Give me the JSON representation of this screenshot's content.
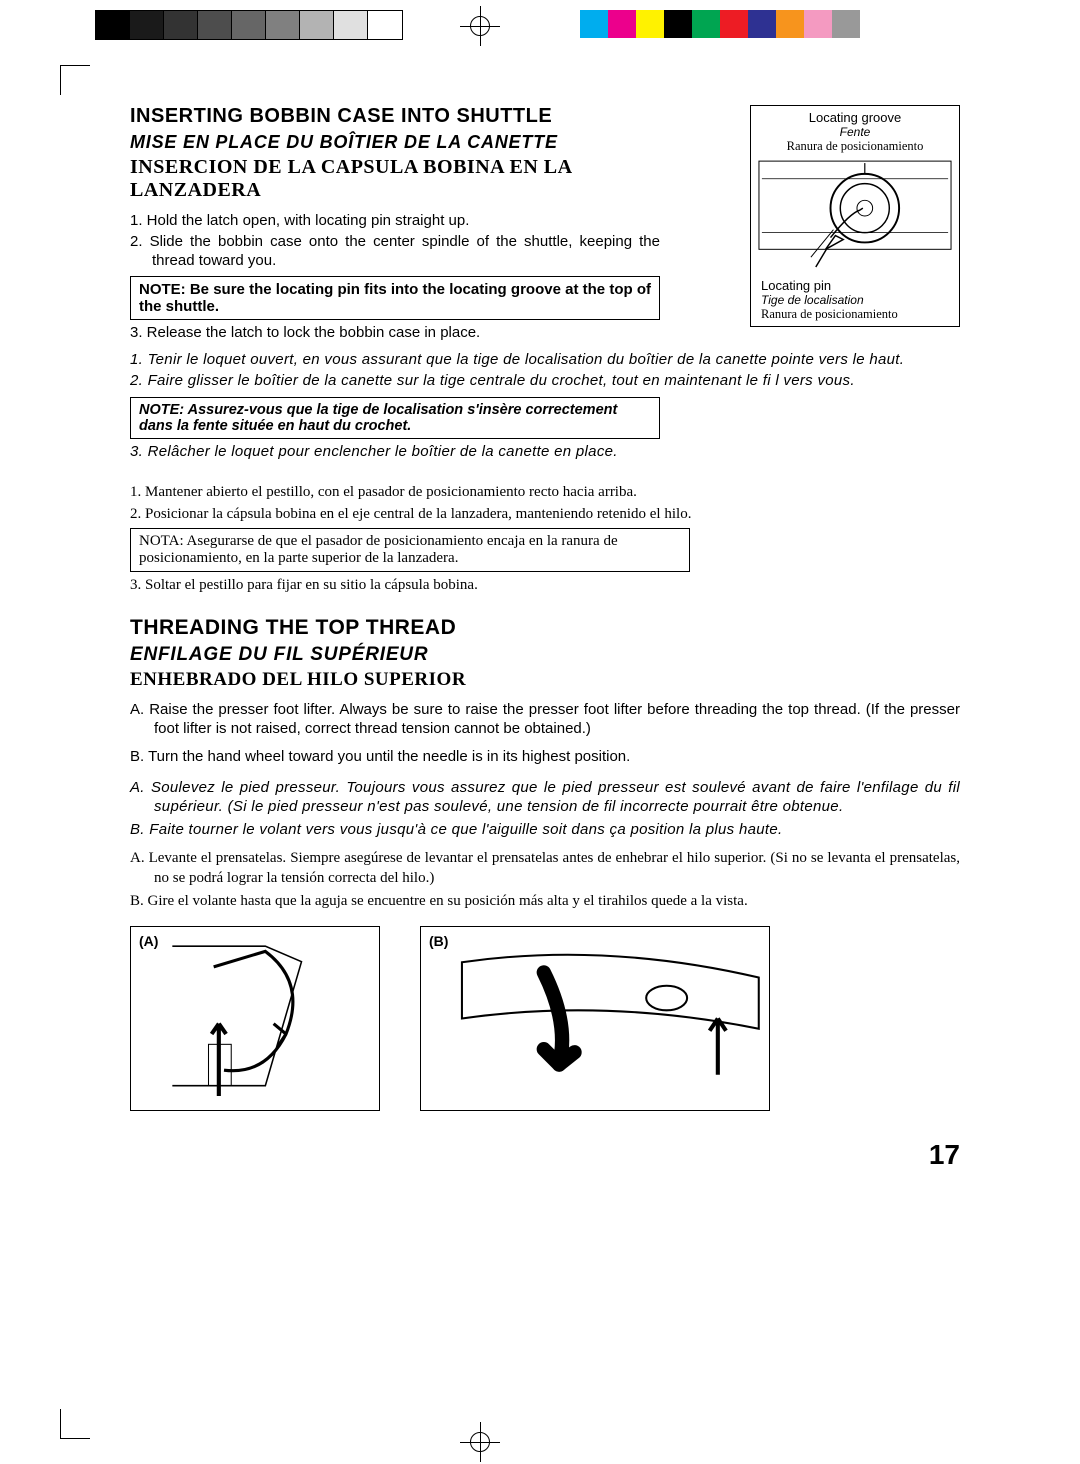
{
  "pageNumber": "17",
  "registration": {
    "grayscale": [
      "#000000",
      "#1a1a1a",
      "#333333",
      "#4d4d4d",
      "#666666",
      "#808080",
      "#b3b3b3",
      "#e0e0e0",
      "#ffffff"
    ],
    "colors": [
      "#00adee",
      "#ec008c",
      "#fff200",
      "#000000",
      "#00a551",
      "#ed1c24",
      "#2e3192",
      "#f7941d",
      "#f49ac1",
      "#999999"
    ]
  },
  "section1": {
    "title_en": "INSERTING BOBBIN CASE INTO SHUTTLE",
    "title_fr": "MISE EN PLACE DU BOÎTIER DE LA CANETTE",
    "title_es": "INSERCION DE LA CAPSULA BOBINA EN LA LANZADERA",
    "en": {
      "step1": "1. Hold the latch open, with locating pin straight up.",
      "step2": "2. Slide the bobbin case onto the center spindle of the shuttle, keeping the thread toward you.",
      "note": "NOTE: Be sure the locating pin fits into the locating groove at the top of the shuttle.",
      "step3": "3. Release the latch to lock the bobbin case in place."
    },
    "fr": {
      "step1": "1. Tenir le loquet ouvert, en vous assurant que la tige de localisation du boîtier de la canette pointe vers le haut.",
      "step2": "2. Faire glisser le boîtier de la canette sur la tige centrale du crochet, tout en maintenant le fi l vers vous.",
      "note": "NOTE: Assurez-vous que la tige de localisation s'insère correctement dans la fente située en haut du crochet.",
      "step3": "3. Relâcher le loquet pour enclencher le boîtier de la canette en place."
    },
    "es": {
      "step1": "1. Mantener abierto el pestillo, con el pasador de posicionamiento recto hacia arriba.",
      "step2": "2. Posicionar la cápsula bobina en el eje central de la lanzadera, manteniendo retenido el hilo.",
      "note": "NOTA: Asegurarse de que el pasador de posicionamiento encaja en la ranura de posicionamiento, en la parte superior de la lanzadera.",
      "step3": "3. Soltar el pestillo para fijar en su sitio la cápsula bobina."
    },
    "figure": {
      "top_en": "Locating groove",
      "top_fr": "Fente",
      "top_es": "Ranura de posicionamiento",
      "bot_en": "Locating pin",
      "bot_fr": "Tige de localisation",
      "bot_es": "Ranura de posicionamiento"
    }
  },
  "section2": {
    "title_en": "THREADING THE TOP THREAD",
    "title_fr": "ENFILAGE DU FIL SUPÉRIEUR",
    "title_es": "ENHEBRADO DEL HILO SUPERIOR",
    "en": {
      "a": "A. Raise the presser foot lifter. Always be sure to raise the presser foot lifter before threading the top thread. (If the presser foot lifter is not raised, correct thread tension cannot be obtained.)",
      "b": "B. Turn the hand wheel toward you until the needle is in its highest position."
    },
    "fr": {
      "a": "A. Soulevez le pied presseur. Toujours vous assurez que le pied presseur est soulevé avant de faire l'enfilage du fil supérieur. (Si le pied presseur n'est pas soulevé, une tension de fil incorrecte pourrait être obtenue.",
      "b": "B. Faite tourner le volant vers vous jusqu'à ce que l'aiguille soit dans ça position la plus haute."
    },
    "es": {
      "a": "A. Levante el prensatelas. Siempre asegúrese de levantar el prensatelas antes de enhebrar el hilo superior. (Si no se levanta el prensatelas, no se podrá lograr la tensión correcta del hilo.)",
      "b": "B. Gire el volante hasta que la aguja se encuentre en su posición más alta y el tirahilos quede a la vista."
    },
    "figA_label": "(A)",
    "figB_label": "(B)"
  }
}
